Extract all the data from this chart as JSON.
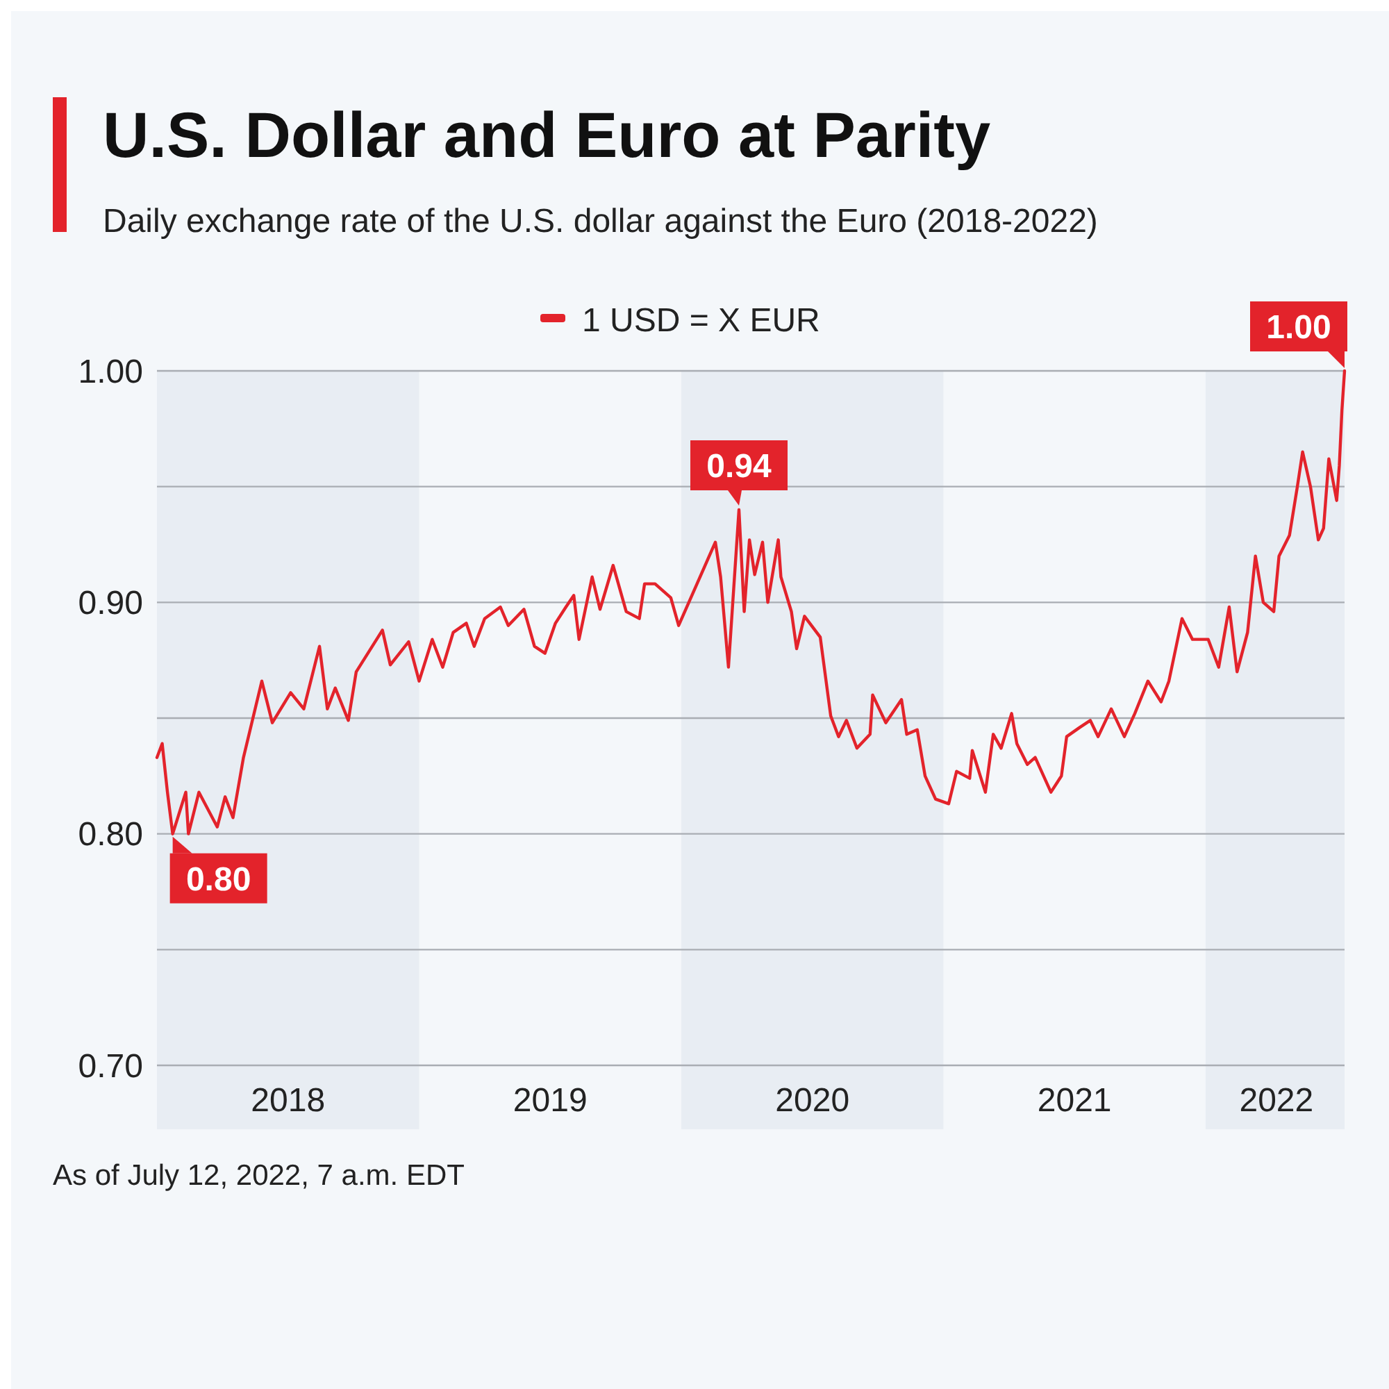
{
  "chart_data": {
    "type": "line",
    "title": "U.S. Dollar and Euro at Parity",
    "subtitle": "Daily exchange rate of the U.S. dollar against the Euro (2018-2022)",
    "annotations": [
      {
        "text": "0.80",
        "x": 2018.06,
        "y": 0.8
      },
      {
        "text": "0.94",
        "x": 2020.22,
        "y": 0.94
      },
      {
        "text": "1.00",
        "x": 2022.53,
        "y": 1.0
      },
      "As of July 12, 2022, 7 a.m. EDT"
    ],
    "series": [
      {
        "name": "1 USD = X EUR",
        "color": "#e3232b",
        "x": [
          2018.0,
          2018.02,
          2018.04,
          2018.06,
          2018.11,
          2018.12,
          2018.16,
          2018.23,
          2018.26,
          2018.29,
          2018.33,
          2018.4,
          2018.44,
          2018.51,
          2018.56,
          2018.62,
          2018.65,
          2018.68,
          2018.73,
          2018.76,
          2018.81,
          2018.86,
          2018.89,
          2018.96,
          2019.0,
          2019.05,
          2019.09,
          2019.13,
          2019.18,
          2019.21,
          2019.25,
          2019.31,
          2019.34,
          2019.4,
          2019.44,
          2019.48,
          2019.52,
          2019.56,
          2019.59,
          2019.61,
          2019.66,
          2019.69,
          2019.74,
          2019.79,
          2019.84,
          2019.86,
          2019.9,
          2019.96,
          2019.99,
          2020.06,
          2020.13,
          2020.15,
          2020.18,
          2020.22,
          2020.24,
          2020.26,
          2020.28,
          2020.31,
          2020.33,
          2020.37,
          2020.38,
          2020.42,
          2020.44,
          2020.47,
          2020.53,
          2020.57,
          2020.6,
          2020.63,
          2020.67,
          2020.72,
          2020.73,
          2020.78,
          2020.84,
          2020.86,
          2020.9,
          2020.93,
          2020.97,
          2021.02,
          2021.05,
          2021.1,
          2021.11,
          2021.16,
          2021.19,
          2021.22,
          2021.26,
          2021.28,
          2021.32,
          2021.35,
          2021.41,
          2021.45,
          2021.47,
          2021.52,
          2021.56,
          2021.59,
          2021.64,
          2021.69,
          2021.73,
          2021.78,
          2021.83,
          2021.86,
          2021.91,
          2021.95,
          2022.01,
          2022.05,
          2022.09,
          2022.12,
          2022.16,
          2022.19,
          2022.22,
          2022.26,
          2022.28,
          2022.32,
          2022.35,
          2022.37,
          2022.4,
          2022.43,
          2022.45,
          2022.47,
          2022.5,
          2022.51,
          2022.52,
          2022.53
        ],
        "values": [
          0.833,
          0.839,
          0.818,
          0.8,
          0.818,
          0.8,
          0.818,
          0.803,
          0.816,
          0.807,
          0.833,
          0.866,
          0.848,
          0.861,
          0.854,
          0.881,
          0.854,
          0.863,
          0.849,
          0.87,
          0.879,
          0.888,
          0.873,
          0.883,
          0.866,
          0.884,
          0.872,
          0.887,
          0.891,
          0.881,
          0.893,
          0.898,
          0.89,
          0.897,
          0.881,
          0.878,
          0.891,
          0.898,
          0.903,
          0.884,
          0.911,
          0.897,
          0.916,
          0.896,
          0.893,
          0.908,
          0.908,
          0.902,
          0.89,
          0.908,
          0.926,
          0.911,
          0.872,
          0.94,
          0.896,
          0.927,
          0.912,
          0.926,
          0.9,
          0.927,
          0.911,
          0.896,
          0.88,
          0.894,
          0.885,
          0.851,
          0.842,
          0.849,
          0.837,
          0.843,
          0.86,
          0.848,
          0.858,
          0.843,
          0.845,
          0.825,
          0.815,
          0.813,
          0.827,
          0.824,
          0.836,
          0.818,
          0.843,
          0.837,
          0.852,
          0.839,
          0.83,
          0.833,
          0.818,
          0.825,
          0.842,
          0.846,
          0.849,
          0.842,
          0.854,
          0.842,
          0.852,
          0.866,
          0.857,
          0.866,
          0.893,
          0.884,
          0.884,
          0.872,
          0.898,
          0.87,
          0.887,
          0.92,
          0.9,
          0.896,
          0.92,
          0.929,
          0.95,
          0.965,
          0.95,
          0.927,
          0.932,
          0.962,
          0.944,
          0.959,
          0.983,
          1.0
        ]
      }
    ],
    "xlim": [
      2018,
      2022.53
    ],
    "xticks": [
      {
        "value": 2018.5,
        "label": "2018"
      },
      {
        "value": 2019.5,
        "label": "2019"
      },
      {
        "value": 2020.5,
        "label": "2020"
      },
      {
        "value": 2021.5,
        "label": "2021"
      },
      {
        "value": 2022.27,
        "label": "2022"
      }
    ],
    "ylim": [
      0.7,
      1.0
    ],
    "yticks": [
      {
        "value": 0.7,
        "label": "0.70"
      },
      {
        "value": 0.75,
        "label": null
      },
      {
        "value": 0.8,
        "label": "0.80"
      },
      {
        "value": 0.85,
        "label": null
      },
      {
        "value": 0.9,
        "label": "0.90"
      },
      {
        "value": 0.95,
        "label": null
      },
      {
        "value": 1.0,
        "label": "1.00"
      }
    ],
    "bands": [
      {
        "axis": "x",
        "from": 2018,
        "to": 2019,
        "color": "#e8edf3"
      },
      {
        "axis": "x",
        "from": 2020,
        "to": 2021,
        "color": "#e8edf3"
      },
      {
        "axis": "x",
        "from": 2022,
        "to": 2022.53,
        "color": "#e8edf3"
      }
    ],
    "grid": "y",
    "legend": "top",
    "line_style": "solid",
    "marker": "none"
  }
}
